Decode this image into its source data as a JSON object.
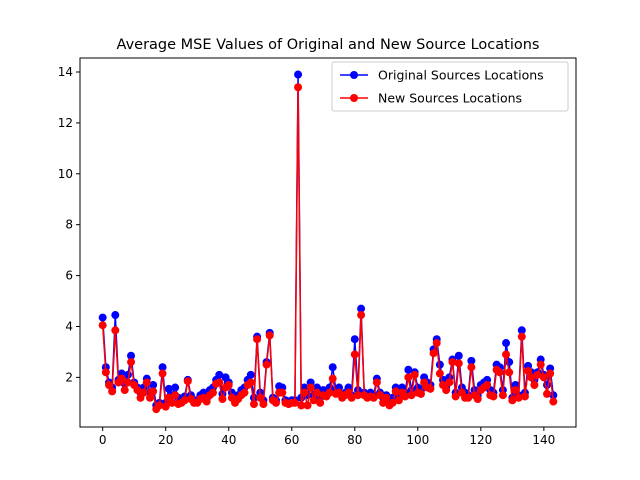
{
  "chart_data": {
    "type": "line",
    "title": "Average MSE Values of Original and New Source Locations",
    "xlabel": "",
    "ylabel": "",
    "xlim": [
      -7.2,
      150.2
    ],
    "ylim": [
      0.05,
      14.55
    ],
    "xticks": [
      0,
      20,
      40,
      60,
      80,
      100,
      120,
      140
    ],
    "yticks": [
      2,
      4,
      6,
      8,
      10,
      12,
      14
    ],
    "grid": false,
    "legend_position": "top-right",
    "series": [
      {
        "name": "Original Sources Locations",
        "color": "#0000ff",
        "marker": "circle",
        "x": [
          0,
          1,
          2,
          3,
          4,
          5,
          6,
          7,
          8,
          9,
          10,
          11,
          12,
          13,
          14,
          15,
          16,
          17,
          18,
          19,
          20,
          21,
          22,
          23,
          24,
          25,
          26,
          27,
          28,
          29,
          30,
          31,
          32,
          33,
          34,
          35,
          36,
          37,
          38,
          39,
          40,
          41,
          42,
          43,
          44,
          45,
          46,
          47,
          48,
          49,
          50,
          51,
          52,
          53,
          54,
          55,
          56,
          57,
          58,
          59,
          60,
          61,
          62,
          63,
          64,
          65,
          66,
          67,
          68,
          69,
          70,
          71,
          72,
          73,
          74,
          75,
          76,
          77,
          78,
          79,
          80,
          81,
          82,
          83,
          84,
          85,
          86,
          87,
          88,
          89,
          90,
          91,
          92,
          93,
          94,
          95,
          96,
          97,
          98,
          99,
          100,
          101,
          102,
          103,
          104,
          105,
          106,
          107,
          108,
          109,
          110,
          111,
          112,
          113,
          114,
          115,
          116,
          117,
          118,
          119,
          120,
          121,
          122,
          123,
          124,
          125,
          126,
          127,
          128,
          129,
          130,
          131,
          132,
          133,
          134,
          135,
          136,
          137,
          138,
          139,
          140,
          141,
          142,
          143
        ],
        "y": [
          4.35,
          2.4,
          1.8,
          1.6,
          4.45,
          1.9,
          2.15,
          1.75,
          2.1,
          2.85,
          1.8,
          1.6,
          1.4,
          1.6,
          1.95,
          1.4,
          1.7,
          0.9,
          1.0,
          2.4,
          1.0,
          1.55,
          1.3,
          1.6,
          1.2,
          1.1,
          1.25,
          1.9,
          1.3,
          1.1,
          1.1,
          1.3,
          1.4,
          1.15,
          1.5,
          1.6,
          1.9,
          2.1,
          1.35,
          2.0,
          1.8,
          1.4,
          1.2,
          1.3,
          1.5,
          1.6,
          1.9,
          2.1,
          1.2,
          3.6,
          1.4,
          1.1,
          2.6,
          3.75,
          1.2,
          1.1,
          1.65,
          1.6,
          1.1,
          1.05,
          1.1,
          1.1,
          13.9,
          1.2,
          1.6,
          1.3,
          1.8,
          1.3,
          1.6,
          1.2,
          1.5,
          1.4,
          1.6,
          2.4,
          1.5,
          1.6,
          1.3,
          1.4,
          1.6,
          1.3,
          3.5,
          1.5,
          4.7,
          1.4,
          1.3,
          1.4,
          1.3,
          1.95,
          1.4,
          1.2,
          1.3,
          1.1,
          1.2,
          1.6,
          1.3,
          1.6,
          1.4,
          2.3,
          1.5,
          2.2,
          1.6,
          1.5,
          2.0,
          1.8,
          1.7,
          3.1,
          3.5,
          2.5,
          1.9,
          1.6,
          2.0,
          2.7,
          1.4,
          2.85,
          1.6,
          1.4,
          1.3,
          2.65,
          1.5,
          1.3,
          1.7,
          1.8,
          1.9,
          1.5,
          1.4,
          2.5,
          2.4,
          1.5,
          3.35,
          2.6,
          1.2,
          1.7,
          1.3,
          3.85,
          1.4,
          2.45,
          2.2,
          1.9,
          2.2,
          2.7,
          2.1,
          1.7,
          2.35,
          1.3
        ]
      },
      {
        "name": "New Sources Locations",
        "color": "#ff0000",
        "marker": "circle",
        "x": [
          0,
          1,
          2,
          3,
          4,
          5,
          6,
          7,
          8,
          9,
          10,
          11,
          12,
          13,
          14,
          15,
          16,
          17,
          18,
          19,
          20,
          21,
          22,
          23,
          24,
          25,
          26,
          27,
          28,
          29,
          30,
          31,
          32,
          33,
          34,
          35,
          36,
          37,
          38,
          39,
          40,
          41,
          42,
          43,
          44,
          45,
          46,
          47,
          48,
          49,
          50,
          51,
          52,
          53,
          54,
          55,
          56,
          57,
          58,
          59,
          60,
          61,
          62,
          63,
          64,
          65,
          66,
          67,
          68,
          69,
          70,
          71,
          72,
          73,
          74,
          75,
          76,
          77,
          78,
          79,
          80,
          81,
          82,
          83,
          84,
          85,
          86,
          87,
          88,
          89,
          90,
          91,
          92,
          93,
          94,
          95,
          96,
          97,
          98,
          99,
          100,
          101,
          102,
          103,
          104,
          105,
          106,
          107,
          108,
          109,
          110,
          111,
          112,
          113,
          114,
          115,
          116,
          117,
          118,
          119,
          120,
          121,
          122,
          123,
          124,
          125,
          126,
          127,
          128,
          129,
          130,
          131,
          132,
          133,
          134,
          135,
          136,
          137,
          138,
          139,
          140,
          141,
          142,
          143
        ],
        "y": [
          4.05,
          2.2,
          1.7,
          1.45,
          3.85,
          1.8,
          1.95,
          1.5,
          1.8,
          2.6,
          1.7,
          1.5,
          1.2,
          1.4,
          1.8,
          1.2,
          1.45,
          0.75,
          0.9,
          2.15,
          0.85,
          1.2,
          1.0,
          1.3,
          0.95,
          1.0,
          1.1,
          1.85,
          1.15,
          1.0,
          1.0,
          1.15,
          1.2,
          1.05,
          1.3,
          1.4,
          1.75,
          1.8,
          1.15,
          1.6,
          1.7,
          1.2,
          1.0,
          1.15,
          1.3,
          1.4,
          1.7,
          1.8,
          0.95,
          3.5,
          1.2,
          0.95,
          2.5,
          3.65,
          1.1,
          1.0,
          1.4,
          1.4,
          1.0,
          0.95,
          1.0,
          1.0,
          13.4,
          0.9,
          1.4,
          0.9,
          1.6,
          1.1,
          1.4,
          1.0,
          1.3,
          1.25,
          1.4,
          1.95,
          1.35,
          1.4,
          1.2,
          1.3,
          1.4,
          1.2,
          2.9,
          1.3,
          4.45,
          1.3,
          1.2,
          1.25,
          1.2,
          1.8,
          1.3,
          1.0,
          1.2,
          0.9,
          1.0,
          1.45,
          1.1,
          1.4,
          1.25,
          2.0,
          1.3,
          2.1,
          1.4,
          1.35,
          1.8,
          1.6,
          1.55,
          2.95,
          3.35,
          2.15,
          1.7,
          1.5,
          1.8,
          2.6,
          1.25,
          2.55,
          1.4,
          1.2,
          1.2,
          2.4,
          1.3,
          1.15,
          1.5,
          1.6,
          1.7,
          1.3,
          1.25,
          2.3,
          2.2,
          1.3,
          2.9,
          2.2,
          1.1,
          1.5,
          1.2,
          3.6,
          1.25,
          2.25,
          2.0,
          1.7,
          2.1,
          2.5,
          2.0,
          1.35,
          2.15,
          1.05
        ]
      }
    ]
  }
}
